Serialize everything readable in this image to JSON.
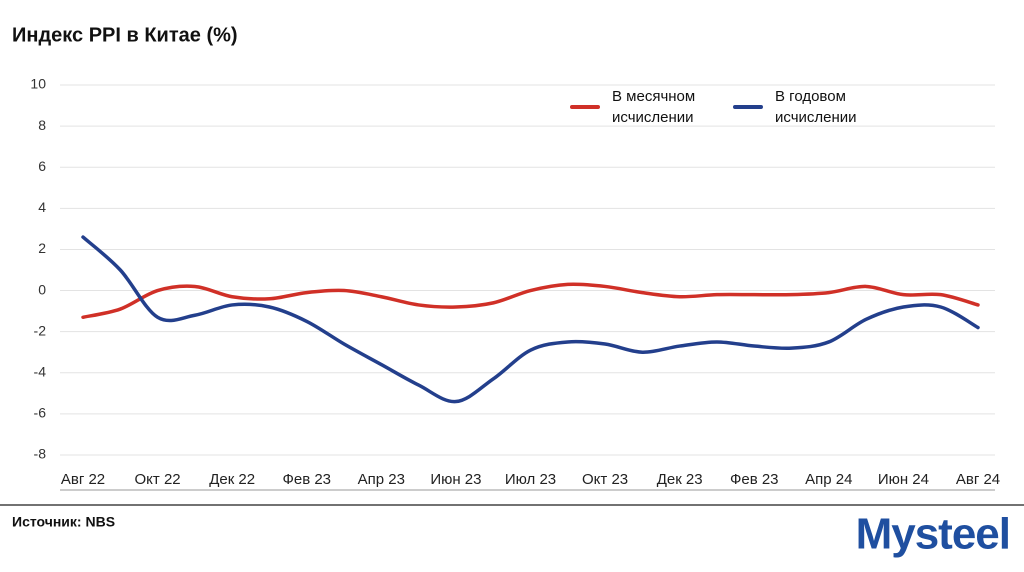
{
  "chart_data": {
    "type": "line",
    "title": "Индекс PPI в Китае (%)",
    "categories": [
      "Авг 22",
      null,
      "Окт 22",
      null,
      "Дек 22",
      null,
      "Фев 23",
      null,
      "Апр 23",
      null,
      "Июн 23",
      null,
      "Июл 23",
      null,
      "Окт 23",
      null,
      "Дек 23",
      null,
      "Фев 23",
      null,
      "Апр 24",
      null,
      "Июн 24",
      null,
      "Авг 24"
    ],
    "series": [
      {
        "name": "В месячном исчислении",
        "color": "#d03027",
        "values": [
          -1.3,
          -0.9,
          0.0,
          0.2,
          -0.3,
          -0.4,
          -0.1,
          0.0,
          -0.3,
          -0.7,
          -0.8,
          -0.6,
          0.0,
          0.3,
          0.2,
          -0.1,
          -0.3,
          -0.2,
          -0.2,
          -0.2,
          -0.1,
          0.2,
          -0.2,
          -0.2,
          -0.7
        ]
      },
      {
        "name": "В годовом исчислении",
        "color": "#233f8c",
        "values": [
          2.6,
          1.0,
          -1.3,
          -1.2,
          -0.7,
          -0.8,
          -1.5,
          -2.6,
          -3.6,
          -4.6,
          -5.4,
          -4.3,
          -2.9,
          -2.5,
          -2.6,
          -3.0,
          -2.7,
          -2.5,
          -2.7,
          -2.8,
          -2.5,
          -1.4,
          -0.8,
          -0.8,
          -1.8
        ]
      }
    ],
    "ylim": [
      -8,
      10
    ],
    "yticks": [
      -8,
      -6,
      -4,
      -2,
      0,
      2,
      4,
      6,
      8,
      10
    ],
    "grid": true
  },
  "source": "Источник: NBS",
  "logo": "Mysteel"
}
